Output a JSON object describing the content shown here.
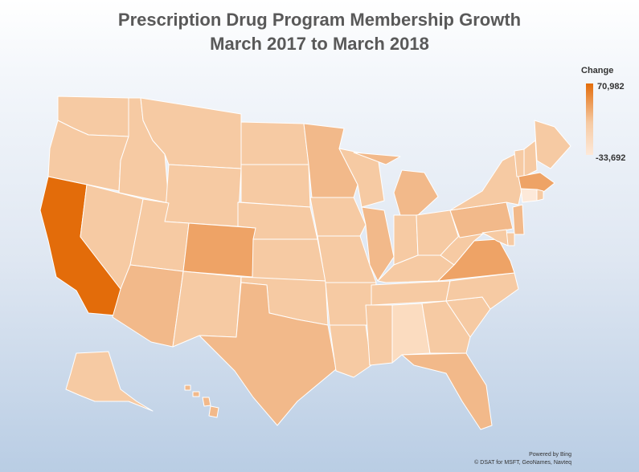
{
  "title_line1": "Prescription Drug Program Membership Growth",
  "title_line2": "March 2017 to March 2018",
  "legend": {
    "title": "Change",
    "max_label": "70,982",
    "min_label": "-33,692",
    "max_color": "#e36c0a",
    "min_color": "#fde9d9"
  },
  "credits": {
    "line1": "Powered by Bing",
    "line2": "© DSAT for MSFT, GeoNames, Navteq"
  },
  "palette": {
    "very_dark": "#e36c0a",
    "dark": "#eea366",
    "mid": "#f2b98a",
    "light": "#f6caa3",
    "very_light": "#fbdcc0",
    "pale": "#fde9d9"
  },
  "states": [
    {
      "code": "WA",
      "level": "light"
    },
    {
      "code": "OR",
      "level": "light"
    },
    {
      "code": "CA",
      "level": "very_dark"
    },
    {
      "code": "ID",
      "level": "light"
    },
    {
      "code": "NV",
      "level": "light"
    },
    {
      "code": "MT",
      "level": "light"
    },
    {
      "code": "WY",
      "level": "light"
    },
    {
      "code": "UT",
      "level": "light"
    },
    {
      "code": "AZ",
      "level": "mid"
    },
    {
      "code": "CO",
      "level": "dark"
    },
    {
      "code": "NM",
      "level": "light"
    },
    {
      "code": "ND",
      "level": "light"
    },
    {
      "code": "SD",
      "level": "light"
    },
    {
      "code": "NE",
      "level": "light"
    },
    {
      "code": "KS",
      "level": "light"
    },
    {
      "code": "OK",
      "level": "light"
    },
    {
      "code": "TX",
      "level": "mid"
    },
    {
      "code": "MN",
      "level": "mid"
    },
    {
      "code": "IA",
      "level": "light"
    },
    {
      "code": "MO",
      "level": "light"
    },
    {
      "code": "AR",
      "level": "light"
    },
    {
      "code": "LA",
      "level": "light"
    },
    {
      "code": "WI",
      "level": "light"
    },
    {
      "code": "IL",
      "level": "mid"
    },
    {
      "code": "MI",
      "level": "mid"
    },
    {
      "code": "IN",
      "level": "light"
    },
    {
      "code": "OH",
      "level": "light"
    },
    {
      "code": "KY",
      "level": "light"
    },
    {
      "code": "TN",
      "level": "light"
    },
    {
      "code": "MS",
      "level": "light"
    },
    {
      "code": "AL",
      "level": "very_light"
    },
    {
      "code": "GA",
      "level": "light"
    },
    {
      "code": "FL",
      "level": "mid"
    },
    {
      "code": "SC",
      "level": "light"
    },
    {
      "code": "NC",
      "level": "light"
    },
    {
      "code": "VA",
      "level": "dark"
    },
    {
      "code": "WV",
      "level": "light"
    },
    {
      "code": "PA",
      "level": "mid"
    },
    {
      "code": "NY",
      "level": "light"
    },
    {
      "code": "ME",
      "level": "light"
    },
    {
      "code": "VT",
      "level": "light"
    },
    {
      "code": "NH",
      "level": "light"
    },
    {
      "code": "MA",
      "level": "dark"
    },
    {
      "code": "CT",
      "level": "pale"
    },
    {
      "code": "RI",
      "level": "light"
    },
    {
      "code": "NJ",
      "level": "mid"
    },
    {
      "code": "DE",
      "level": "light"
    },
    {
      "code": "MD",
      "level": "light"
    },
    {
      "code": "AK",
      "level": "light"
    },
    {
      "code": "HI",
      "level": "mid"
    }
  ]
}
